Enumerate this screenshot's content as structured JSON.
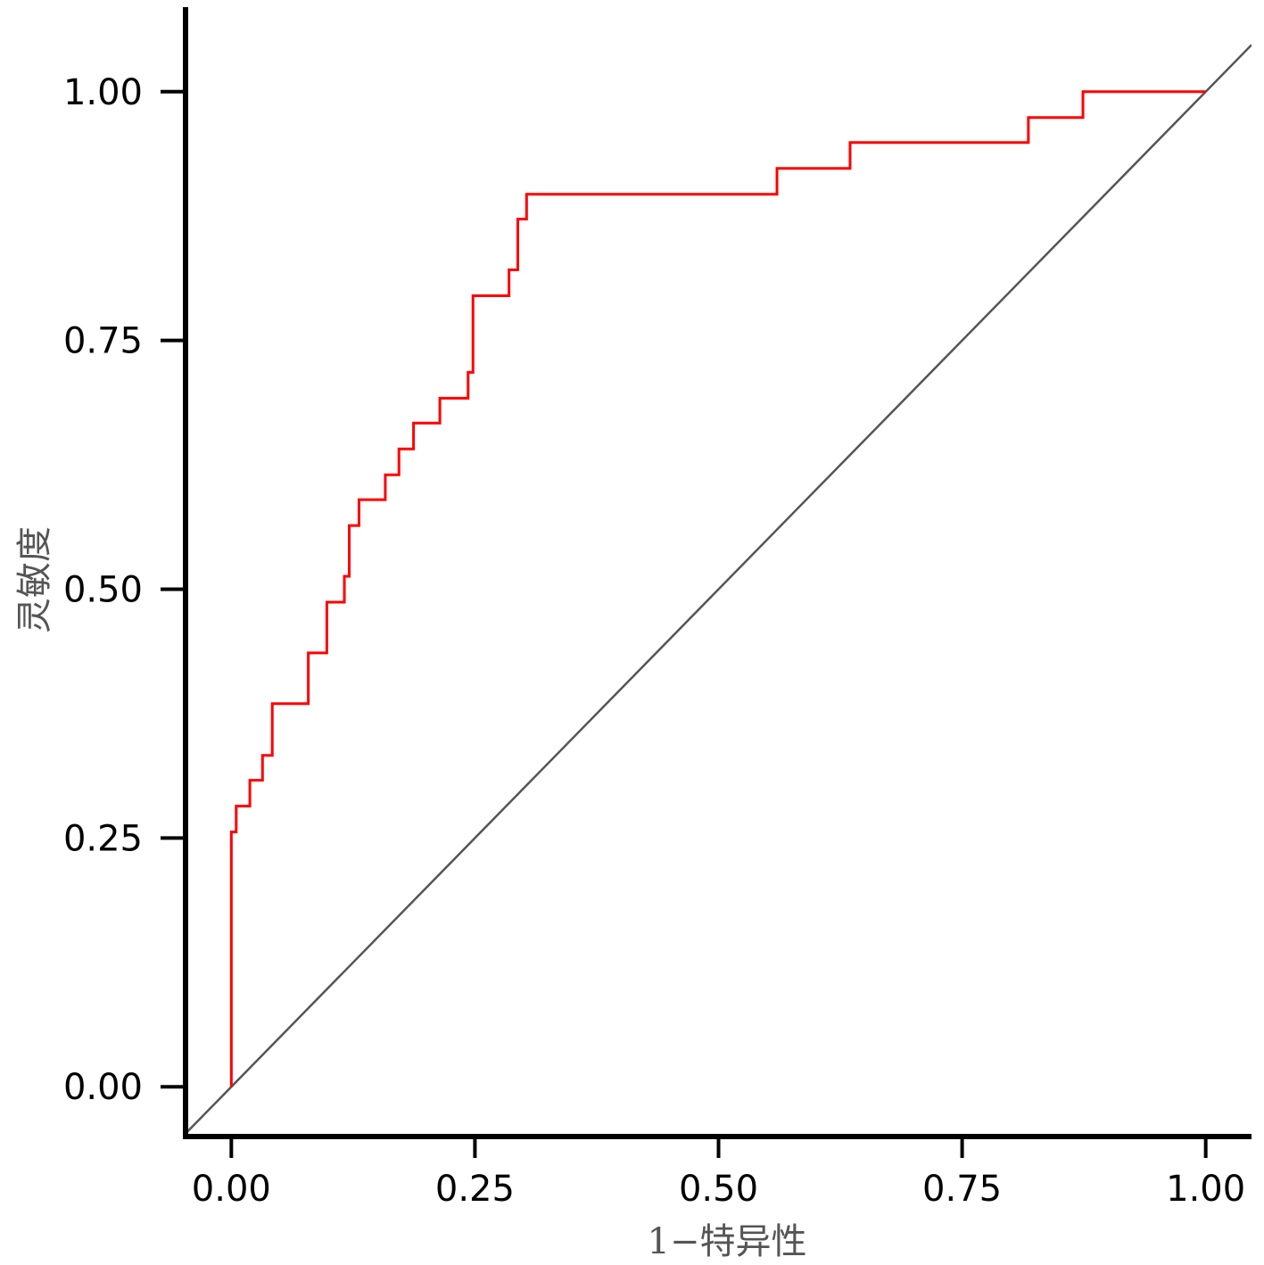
{
  "chart_data": {
    "type": "line",
    "title": "",
    "xlabel": "1−特异性",
    "ylabel": "灵敏度",
    "xlim": [
      -0.047,
      1.047
    ],
    "ylim": [
      -0.05,
      1.085
    ],
    "x_ticks": [
      "0.00",
      "0.25",
      "0.50",
      "0.75",
      "1.00"
    ],
    "y_ticks": [
      "0.00",
      "0.25",
      "0.50",
      "0.75",
      "1.00"
    ],
    "x_tick_values": [
      0,
      0.25,
      0.5,
      0.75,
      1
    ],
    "y_tick_values": [
      0,
      0.25,
      0.5,
      0.75,
      1
    ],
    "grid": false,
    "legend": "none",
    "series": [
      {
        "color": "#ff0000",
        "style": "step",
        "points": [
          [
            0.0,
            0.0
          ],
          [
            0.0,
            0.256
          ],
          [
            0.005,
            0.256
          ],
          [
            0.005,
            0.282
          ],
          [
            0.019,
            0.282
          ],
          [
            0.019,
            0.308
          ],
          [
            0.032,
            0.308
          ],
          [
            0.032,
            0.333
          ],
          [
            0.042,
            0.333
          ],
          [
            0.042,
            0.385
          ],
          [
            0.079,
            0.385
          ],
          [
            0.079,
            0.436
          ],
          [
            0.098,
            0.436
          ],
          [
            0.098,
            0.487
          ],
          [
            0.116,
            0.487
          ],
          [
            0.116,
            0.513
          ],
          [
            0.121,
            0.513
          ],
          [
            0.121,
            0.564
          ],
          [
            0.131,
            0.564
          ],
          [
            0.131,
            0.59
          ],
          [
            0.158,
            0.59
          ],
          [
            0.158,
            0.615
          ],
          [
            0.172,
            0.615
          ],
          [
            0.172,
            0.641
          ],
          [
            0.187,
            0.641
          ],
          [
            0.187,
            0.667
          ],
          [
            0.214,
            0.667
          ],
          [
            0.214,
            0.692
          ],
          [
            0.243,
            0.692
          ],
          [
            0.243,
            0.718
          ],
          [
            0.248,
            0.718
          ],
          [
            0.248,
            0.795
          ],
          [
            0.285,
            0.795
          ],
          [
            0.285,
            0.821
          ],
          [
            0.294,
            0.821
          ],
          [
            0.294,
            0.872
          ],
          [
            0.303,
            0.872
          ],
          [
            0.303,
            0.897
          ],
          [
            0.56,
            0.897
          ],
          [
            0.56,
            0.923
          ],
          [
            0.635,
            0.923
          ],
          [
            0.635,
            0.949
          ],
          [
            0.818,
            0.949
          ],
          [
            0.818,
            0.974
          ],
          [
            0.874,
            0.974
          ],
          [
            0.874,
            1.0
          ],
          [
            1.0,
            1.0
          ]
        ]
      },
      {
        "color": "#555555",
        "style": "line",
        "points": [
          [
            -0.047,
            -0.047
          ],
          [
            1.047,
            1.047
          ]
        ]
      }
    ]
  }
}
